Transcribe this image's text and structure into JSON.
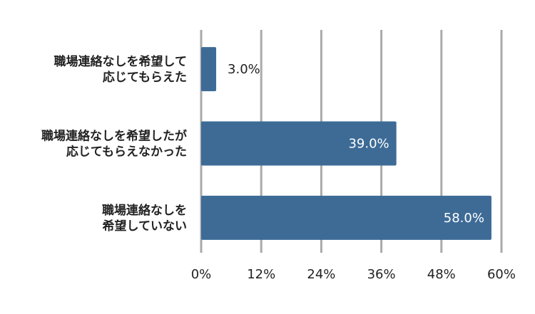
{
  "chart_data": {
    "type": "bar",
    "orientation": "horizontal",
    "categories": [
      [
        "職場連絡なしを希望して",
        "応じてもらえた"
      ],
      [
        "職場連絡なしを希望したが",
        "応じてもらえなかった"
      ],
      [
        "職場連絡なしを",
        "希望していない"
      ]
    ],
    "values": [
      3.0,
      39.0,
      58.0
    ],
    "value_labels": [
      "3.0%",
      "39.0%",
      "58.0%"
    ],
    "xlim": [
      0,
      60
    ],
    "ticks": [
      0,
      12,
      24,
      36,
      48,
      60
    ],
    "tick_labels": [
      "0%",
      "12%",
      "24%",
      "36%",
      "48%",
      "60%"
    ],
    "grid": "vertical",
    "title": "",
    "xlabel": "",
    "ylabel": "",
    "colors": {
      "bar": "#3d6b96",
      "grid": "#aaaaaa",
      "label_inside": "#ffffff",
      "label_outside": "#222222"
    }
  }
}
